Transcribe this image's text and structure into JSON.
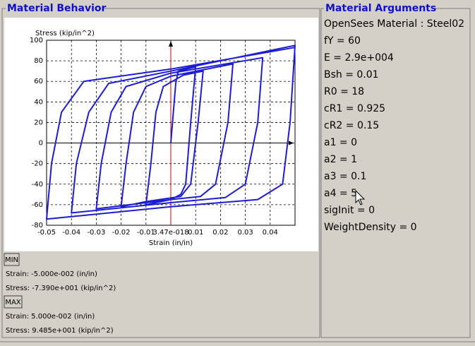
{
  "left_panel": {
    "title": "Material Behavior"
  },
  "chart_data": {
    "type": "line",
    "y_label": "Stress (kip/in^2)",
    "x_label": "Strain (in/in)",
    "x": [
      0,
      0.002,
      0.003,
      0.01,
      0.008,
      0.006,
      0.004,
      0,
      -0.01,
      -0.008,
      -0.006,
      -0.003,
      0.005,
      0.013,
      0.011,
      0.008,
      0.004,
      -0.01,
      -0.02,
      -0.018,
      -0.015,
      -0.01,
      0,
      0.025,
      0.023,
      0.018,
      0.012,
      0,
      -0.03,
      -0.028,
      -0.024,
      -0.018,
      0,
      0.037,
      0.035,
      0.03,
      0.022,
      0,
      -0.04,
      -0.038,
      -0.033,
      -0.025,
      0,
      0.05,
      0.048,
      0.045,
      0.035,
      0,
      -0.05,
      -0.048,
      -0.044,
      -0.035,
      0,
      0.05
    ],
    "series": [
      {
        "color": "#1c1cd6",
        "values": [
          0,
          58,
          70,
          74,
          20,
          -40,
          -50,
          -55,
          -60,
          -20,
          30,
          55,
          66,
          70,
          20,
          -40,
          -52,
          -57,
          -62,
          -20,
          30,
          55,
          65,
          77,
          20,
          -40,
          -52,
          -55,
          -64,
          -20,
          30,
          55,
          68,
          83,
          20,
          -40,
          -53,
          -58,
          -68,
          -20,
          30,
          58,
          70,
          95,
          20,
          -40,
          -55,
          -62,
          -74,
          -20,
          30,
          60,
          72,
          93
        ]
      }
    ],
    "xlim": [
      -0.05,
      0.05
    ],
    "ylim": [
      -80,
      100
    ],
    "xticks": [
      -0.05,
      -0.04,
      -0.03,
      -0.02,
      -0.01,
      {
        "value": 3.47e-18,
        "label": "3.47e-018"
      },
      0.01,
      0.02,
      0.03,
      0.04
    ],
    "yticks": [
      -80,
      -60,
      -40,
      -20,
      0,
      20,
      40,
      60,
      80,
      100
    ],
    "grid": true
  },
  "min_panel": {
    "button": "MIN",
    "strain": "Strain: -5.000e-002 (in/in)",
    "stress": "Stress: -7.390e+001 (kip/in^2)"
  },
  "max_panel": {
    "button": "MAX",
    "strain": "Strain: 5.000e-002 (in/in)",
    "stress": "Stress: 9.485e+001 (kip/in^2)"
  },
  "right_panel": {
    "title": "Material Arguments",
    "items": [
      "OpenSees Material : Steel02",
      "fY = 60",
      "E = 2.9e+004",
      "Bsh = 0.01",
      "R0 = 18",
      "cR1 = 0.925",
      "cR2 = 0.15",
      "a1 = 0",
      "a2 = 1",
      "a3 = 0.1",
      "a4 = 5",
      "sigInit = 0",
      "WeightDensity = 0"
    ]
  }
}
